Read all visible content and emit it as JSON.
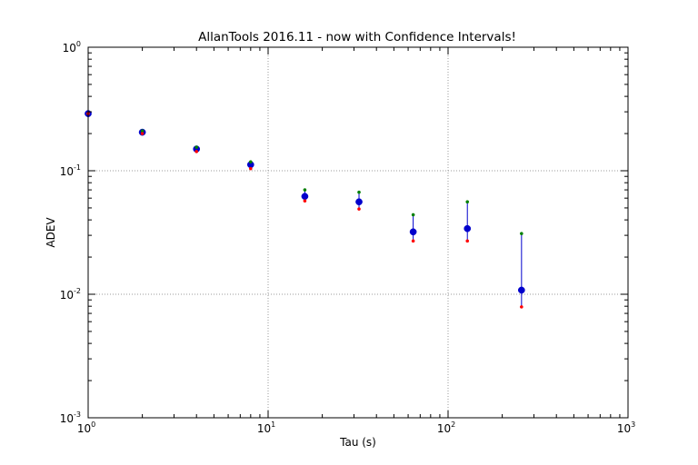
{
  "chart_data": {
    "type": "scatter",
    "title": "AllanTools 2016.11 - now with Confidence Intervals!",
    "xlabel": "Tau (s)",
    "ylabel": "ADEV",
    "xscale": "log",
    "yscale": "log",
    "xlim": [
      1,
      1000
    ],
    "ylim": [
      0.001,
      1
    ],
    "grid": true,
    "x_ticks": [
      1,
      10,
      100,
      1000
    ],
    "x_tick_labels": [
      {
        "base": "10",
        "exp": "0"
      },
      {
        "base": "10",
        "exp": "1"
      },
      {
        "base": "10",
        "exp": "2"
      },
      {
        "base": "10",
        "exp": "3"
      }
    ],
    "y_ticks": [
      0.001,
      0.01,
      0.1,
      1
    ],
    "y_tick_labels": [
      {
        "base": "10",
        "exp": "-3"
      },
      {
        "base": "10",
        "exp": "-2"
      },
      {
        "base": "10",
        "exp": "-1"
      },
      {
        "base": "10",
        "exp": "0"
      }
    ],
    "series": [
      {
        "x": [
          1,
          2,
          4,
          8,
          16,
          32,
          64,
          128,
          256
        ],
        "y": [
          0.29,
          0.205,
          0.15,
          0.112,
          0.062,
          0.056,
          0.032,
          0.034,
          0.0108
        ],
        "marker": "circle",
        "color": "#0000cc"
      },
      {
        "x": [
          1,
          2,
          4,
          8,
          16,
          32,
          64,
          128,
          256
        ],
        "y": [
          0.29,
          0.21,
          0.155,
          0.118,
          0.07,
          0.067,
          0.044,
          0.056,
          0.031
        ],
        "marker": "small-dot",
        "color": "#008000"
      },
      {
        "x": [
          1,
          2,
          4,
          8,
          16,
          32,
          64,
          128,
          256
        ],
        "y": [
          0.29,
          0.2,
          0.143,
          0.104,
          0.057,
          0.049,
          0.027,
          0.027,
          0.0079
        ],
        "marker": "small-dot",
        "color": "#ff0000"
      }
    ],
    "error_bar_color": "#0000cc"
  }
}
